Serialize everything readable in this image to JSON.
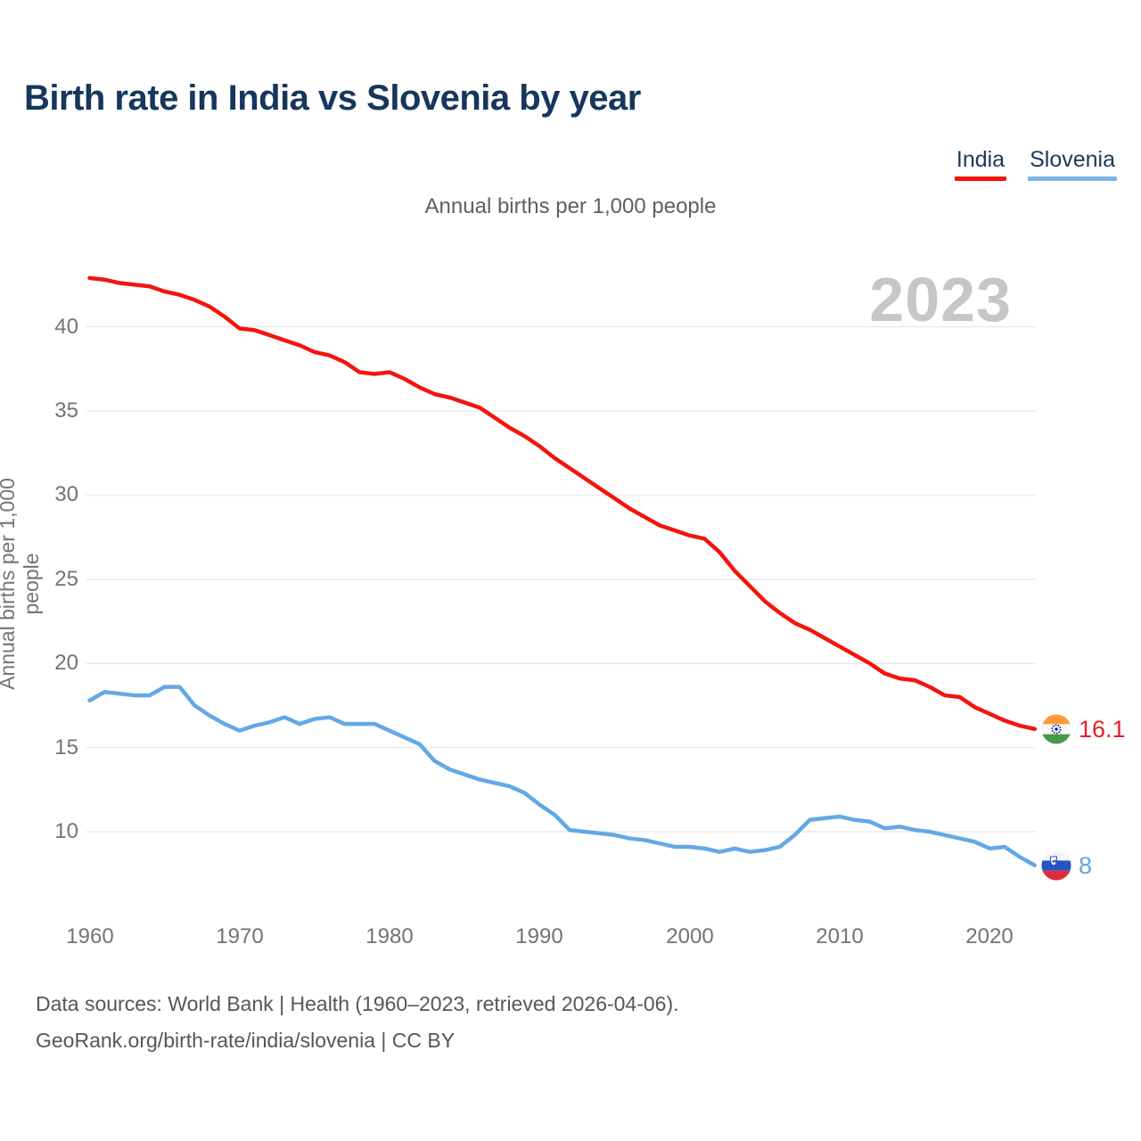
{
  "header": {
    "title": "Birth rate in India vs Slovenia by year"
  },
  "legend": {
    "items": [
      {
        "label": "India",
        "color": "#f2150f"
      },
      {
        "label": "Slovenia",
        "color": "#7ab7e8"
      }
    ]
  },
  "chart": {
    "subtitle": "Annual births per 1,000 people",
    "watermark_year": "2023",
    "y_axis_title": "Annual births per 1,000 people"
  },
  "end_labels": {
    "india": {
      "value": "16.1",
      "flag": "india-flag"
    },
    "slovenia": {
      "value": "8",
      "flag": "slovenia-flag"
    }
  },
  "footer": {
    "line1": "Data sources: World Bank | Health (1960–2023, retrieved 2026-04-06).",
    "line2": "GeoRank.org/birth-rate/india/slovenia | CC BY"
  },
  "chart_data": {
    "type": "line",
    "title": "Birth rate in India vs Slovenia by year",
    "subtitle": "Annual births per 1,000 people",
    "xlabel": "",
    "ylabel": "Annual births per 1,000 people",
    "xlim": [
      1960,
      2023
    ],
    "ylim": [
      7,
      44
    ],
    "grid": "horizontal",
    "legend_position": "top-right",
    "watermark": "2023",
    "x_ticks": [
      1960,
      1970,
      1980,
      1990,
      2000,
      2010,
      2020
    ],
    "x_tick_labels": [
      "1960",
      "1970",
      "1980",
      "1990",
      "2000",
      "2010",
      "2020"
    ],
    "y_ticks": [
      40,
      35,
      30,
      25,
      20,
      15,
      10
    ],
    "y_tick_labels": [
      "40",
      "35",
      "30",
      "25",
      "20",
      "15",
      "10"
    ],
    "x": [
      1960,
      1961,
      1962,
      1963,
      1964,
      1965,
      1966,
      1967,
      1968,
      1969,
      1970,
      1971,
      1972,
      1973,
      1974,
      1975,
      1976,
      1977,
      1978,
      1979,
      1980,
      1981,
      1982,
      1983,
      1984,
      1985,
      1986,
      1987,
      1988,
      1989,
      1990,
      1991,
      1992,
      1993,
      1994,
      1995,
      1996,
      1997,
      1998,
      1999,
      2000,
      2001,
      2002,
      2003,
      2004,
      2005,
      2006,
      2007,
      2008,
      2009,
      2010,
      2011,
      2012,
      2013,
      2014,
      2015,
      2016,
      2017,
      2018,
      2019,
      2020,
      2021,
      2022,
      2023
    ],
    "series": [
      {
        "name": "India",
        "color": "#f2150f",
        "end_label": "16.1",
        "values": [
          42.9,
          42.8,
          42.6,
          42.5,
          42.4,
          42.1,
          41.9,
          41.6,
          41.2,
          40.6,
          39.9,
          39.8,
          39.5,
          39.2,
          38.9,
          38.5,
          38.3,
          37.9,
          37.3,
          37.2,
          37.3,
          36.9,
          36.4,
          36.0,
          35.8,
          35.5,
          35.2,
          34.6,
          34.0,
          33.5,
          32.9,
          32.2,
          31.6,
          31.0,
          30.4,
          29.8,
          29.2,
          28.7,
          28.2,
          27.9,
          27.6,
          27.4,
          26.6,
          25.5,
          24.6,
          23.7,
          23.0,
          22.4,
          22.0,
          21.5,
          21.0,
          20.5,
          20.0,
          19.4,
          19.1,
          19.0,
          18.6,
          18.1,
          18.0,
          17.4,
          17.0,
          16.6,
          16.3,
          16.1
        ]
      },
      {
        "name": "Slovenia",
        "color": "#63a8e6",
        "end_label": "8",
        "values": [
          17.8,
          18.3,
          18.2,
          18.1,
          18.1,
          18.6,
          18.6,
          17.5,
          16.9,
          16.4,
          16.0,
          16.3,
          16.5,
          16.8,
          16.4,
          16.7,
          16.8,
          16.4,
          16.4,
          16.4,
          16.0,
          15.6,
          15.2,
          14.2,
          13.7,
          13.4,
          13.1,
          12.9,
          12.7,
          12.3,
          11.6,
          11.0,
          10.1,
          10.0,
          9.9,
          9.8,
          9.6,
          9.5,
          9.3,
          9.1,
          9.1,
          9.0,
          8.8,
          9.0,
          8.8,
          8.9,
          9.1,
          9.8,
          10.7,
          10.8,
          10.9,
          10.7,
          10.6,
          10.2,
          10.3,
          10.1,
          10.0,
          9.8,
          9.6,
          9.4,
          9.0,
          9.1,
          8.5,
          8.0
        ]
      }
    ]
  }
}
